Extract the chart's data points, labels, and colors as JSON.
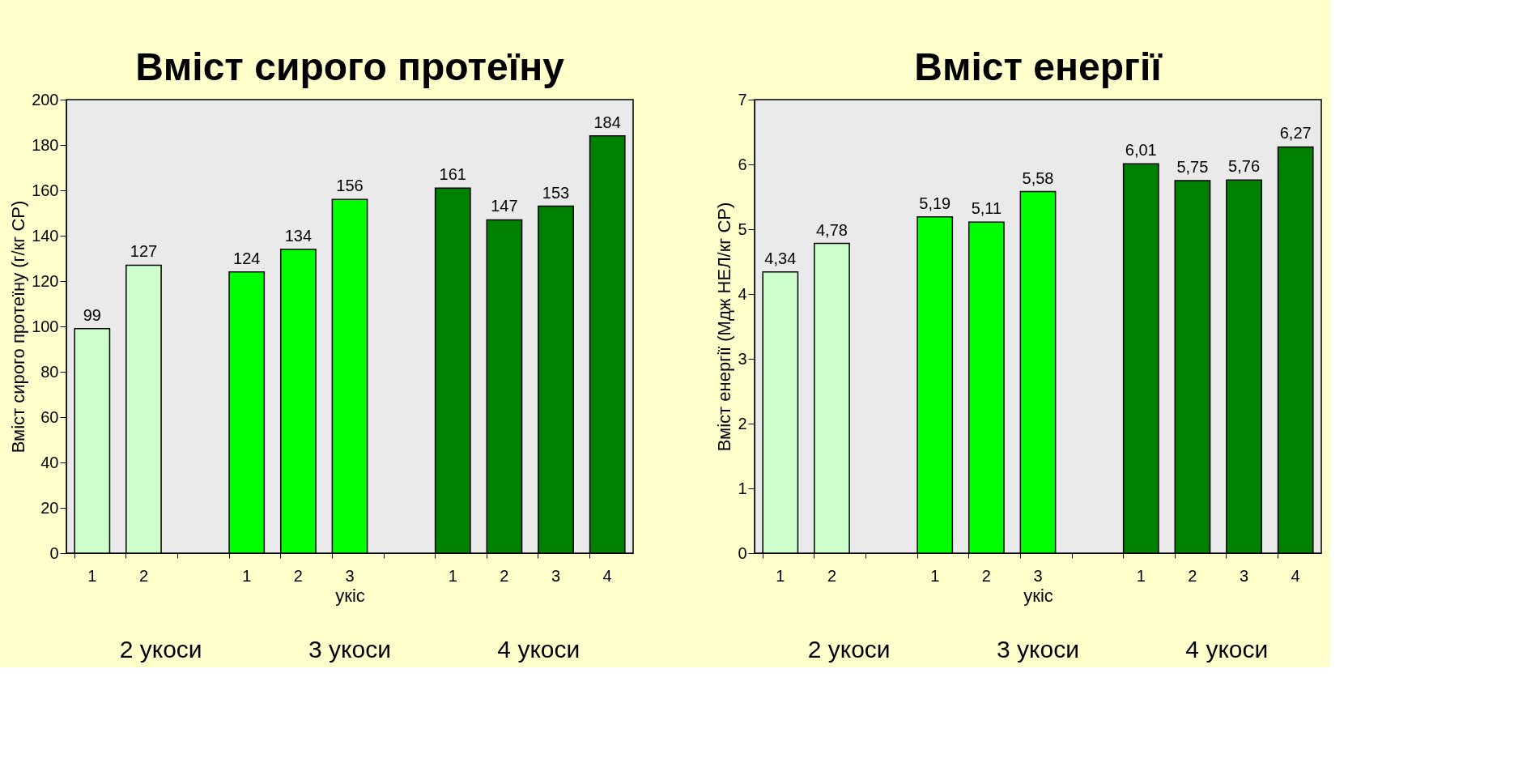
{
  "chart_data": [
    {
      "type": "bar",
      "title": "Вміст сирого протеїну",
      "xlabel": "укіс",
      "ylabel": "Вміст сирого протеїну (г/кг СР)",
      "categories": [
        "1",
        "2",
        null,
        "1",
        "2",
        "3",
        null,
        "1",
        "2",
        "3",
        "4"
      ],
      "values": [
        99,
        127,
        null,
        124,
        134,
        156,
        null,
        161,
        147,
        153,
        184
      ],
      "colors": [
        "#ccffcc",
        "#ccffcc",
        null,
        "#00ff00",
        "#00ff00",
        "#00ff00",
        null,
        "#008000",
        "#008000",
        "#008000",
        "#008000"
      ],
      "ylim": [
        0,
        200
      ],
      "yticks": [
        0,
        20,
        40,
        60,
        80,
        100,
        120,
        140,
        160,
        180,
        200
      ],
      "grid": false,
      "data_labels": true,
      "annotations": [
        "2 укоси",
        "3 укоси",
        "4 укоси"
      ]
    },
    {
      "type": "bar",
      "title": "Вміст енергії",
      "xlabel": "укіс",
      "ylabel": "Вміст енергії (Мдж НЕЛ/кг СР)",
      "categories": [
        "1",
        "2",
        null,
        "1",
        "2",
        "3",
        null,
        "1",
        "2",
        "3",
        "4"
      ],
      "values": [
        4.34,
        4.78,
        null,
        5.19,
        5.11,
        5.58,
        null,
        6.01,
        5.75,
        5.76,
        6.27
      ],
      "value_labels": [
        "4,34",
        "4,78",
        null,
        "5,19",
        "5,11",
        "5,58",
        null,
        "6,01",
        "5,75",
        "5,76",
        "6,27"
      ],
      "colors": [
        "#ccffcc",
        "#ccffcc",
        null,
        "#00ff00",
        "#00ff00",
        "#00ff00",
        null,
        "#008000",
        "#008000",
        "#008000",
        "#008000"
      ],
      "ylim": [
        0,
        7
      ],
      "yticks": [
        0,
        1,
        2,
        3,
        4,
        5,
        6,
        7
      ],
      "grid": false,
      "annotations": [
        "2 укоси",
        "3 укоси",
        "4 укоси"
      ]
    }
  ]
}
